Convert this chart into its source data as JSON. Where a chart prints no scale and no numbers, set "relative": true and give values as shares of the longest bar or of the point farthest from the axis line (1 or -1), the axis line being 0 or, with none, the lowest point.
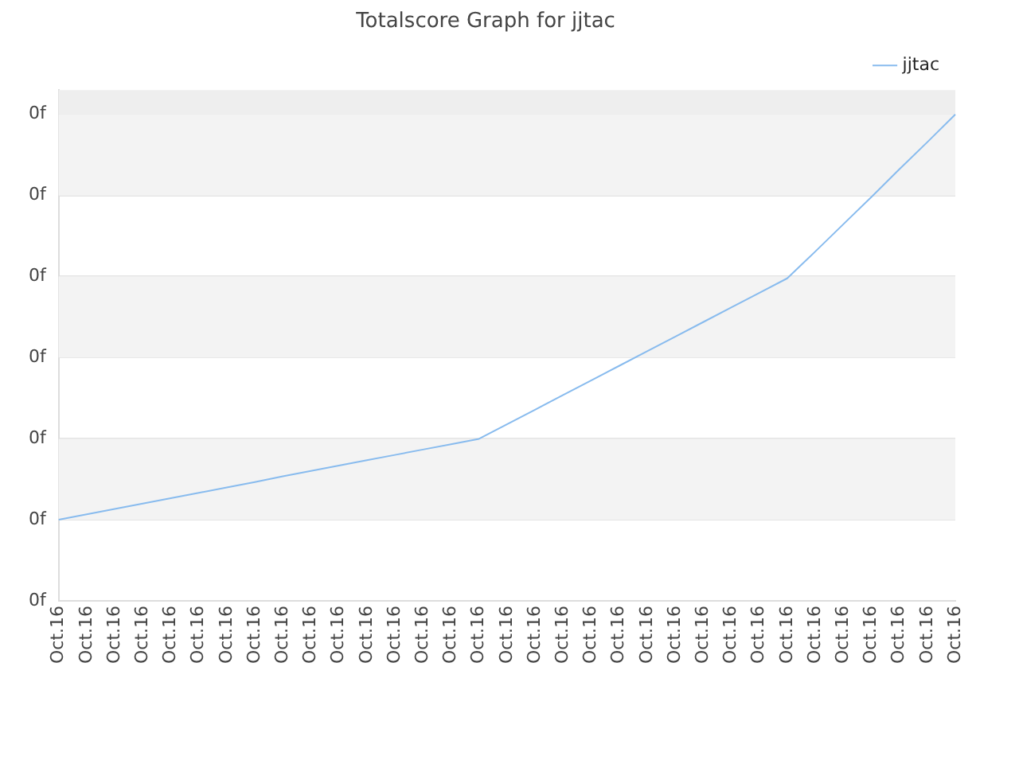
{
  "chart_data": {
    "type": "line",
    "title": "Totalscore Graph for jjtac",
    "relative": true,
    "categories": [
      "Oct.16",
      "Oct.16",
      "Oct.16",
      "Oct.16",
      "Oct.16",
      "Oct.16",
      "Oct.16",
      "Oct.16",
      "Oct.16",
      "Oct.16",
      "Oct.16",
      "Oct.16",
      "Oct.16",
      "Oct.16",
      "Oct.16",
      "Oct.16",
      "Oct.16",
      "Oct.16",
      "Oct.16",
      "Oct.16",
      "Oct.16",
      "Oct.16",
      "Oct.16",
      "Oct.16",
      "Oct.16",
      "Oct.16",
      "Oct.16",
      "Oct.16",
      "Oct.16",
      "Oct.16",
      "Oct.16",
      "Oct.16",
      "Oct.16"
    ],
    "series": [
      {
        "name": "jjtac",
        "color": "#88bbee",
        "values": [
          0.167,
          0.178,
          0.189,
          0.2,
          0.211,
          0.222,
          0.233,
          0.244,
          0.256,
          0.267,
          0.278,
          0.289,
          0.3,
          0.311,
          0.322,
          0.333,
          0.363,
          0.393,
          0.423,
          0.453,
          0.483,
          0.513,
          0.543,
          0.573,
          0.603,
          0.633,
          0.663,
          0.718,
          0.774,
          0.83,
          0.887,
          0.943,
          1
        ]
      }
    ],
    "annotations": [
      "0f",
      "0f",
      "0f",
      "0f",
      "0f",
      "0f",
      "0f"
    ],
    "bands": [
      {
        "axis": "y",
        "from": 0.167,
        "to": 0.333,
        "color": "#f3f3f3"
      },
      {
        "axis": "y",
        "from": 0.5,
        "to": 0.667,
        "color": "#f3f3f3"
      },
      {
        "axis": "y",
        "from": 0.833,
        "to": 1,
        "color": "#f3f3f3"
      },
      {
        "axis": "y",
        "from": 1,
        "to": 1.05,
        "color": "#eeeeee"
      }
    ],
    "grid": "y",
    "legend": "top right",
    "marker": "none",
    "line_style": "solid"
  }
}
